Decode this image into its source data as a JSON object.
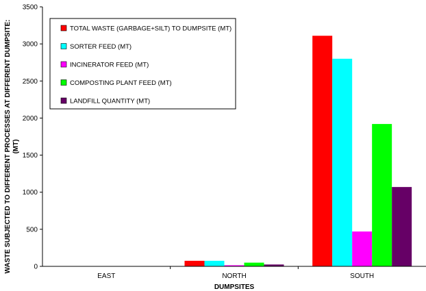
{
  "chart_data": {
    "type": "bar",
    "title": "",
    "xlabel": "DUMPSITES",
    "ylabel_lines": [
      "WASTE SUBJECTED TO DIFFERENT PROCESSES AT DIFFERENT DUMPSITE:",
      "(MT)"
    ],
    "ylim": [
      0,
      3500
    ],
    "yticks": [
      0,
      500,
      1000,
      1500,
      2000,
      2500,
      3000,
      3500
    ],
    "categories": [
      "EAST",
      "NORTH",
      "SOUTH"
    ],
    "grid": false,
    "legend_position": "top-left",
    "series": [
      {
        "name": "TOTAL WASTE (GARBAGE+SILT) TO DUMPSITE (MT)",
        "color": "#ff0000",
        "values": [
          0,
          75,
          3110
        ]
      },
      {
        "name": "SORTER FEED (MT)",
        "color": "#00ffff",
        "values": [
          0,
          75,
          2800
        ]
      },
      {
        "name": "INCINERATOR FEED (MT)",
        "color": "#ff00ff",
        "values": [
          0,
          15,
          470
        ]
      },
      {
        "name": "COMPOSTING PLANT FEED (MT)",
        "color": "#00ff00",
        "values": [
          0,
          50,
          1920
        ]
      },
      {
        "name": "LANDFILL QUANTITY (MT)",
        "color": "#660066",
        "values": [
          0,
          25,
          1070
        ]
      }
    ]
  }
}
